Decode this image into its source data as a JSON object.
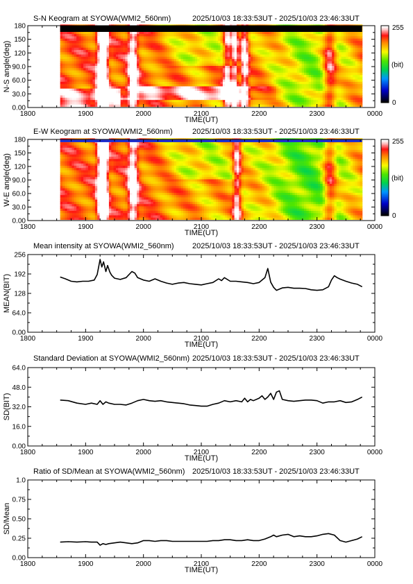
{
  "station": "SYOWA",
  "instrument": "WMI2_560nm",
  "time_range": "2025/10/03 18:33:53UT - 2025/10/03 23:46:33UT",
  "colors": {
    "axis": "#000000",
    "line": "#000000",
    "saturation_bar": "#000000",
    "colorbar": [
      "#000000",
      "#0000ff",
      "#00ff00",
      "#ffff00",
      "#ff0000",
      "#ffffff"
    ]
  },
  "colorbar_labels": {
    "max": "255",
    "unit": "(bit)",
    "min": "0"
  },
  "x_ticks": [
    "1800",
    "1900",
    "2000",
    "2100",
    "2200",
    "2300",
    "0000"
  ],
  "chart_data": [
    {
      "type": "heatmap",
      "title": "S-N Keogram at SYOWA(WMI2_560nm)",
      "subtitle": "2025/10/03 18:33:53UT - 2025/10/03 23:46:33UT",
      "xlabel": "TIME(UT)",
      "ylabel": "N-S angle(deg)",
      "yticks": [
        "0.00",
        "30.0",
        "60.0",
        "90.0",
        "120",
        "150",
        "180"
      ],
      "xlim": [
        0,
        6
      ],
      "ylim": [
        0,
        180
      ],
      "data_extent": [
        0.56,
        5.78
      ],
      "value_range": [
        0,
        255
      ],
      "bright_events": [
        {
          "t": 1.26,
          "width": 0.05,
          "type": "vertical"
        },
        {
          "t": 1.34,
          "width": 0.04,
          "type": "vertical"
        },
        {
          "t": 1.82,
          "width": 0.06,
          "type": "vertical"
        },
        {
          "t": 3.45,
          "width": 0.05,
          "type": "vertical"
        },
        {
          "t": 3.58,
          "width": 0.04,
          "type": "vertical"
        },
        {
          "t": 3.75,
          "width": 0.05,
          "type": "vertical"
        },
        {
          "t": 5.22,
          "width": 0.08,
          "type": "vertical"
        }
      ],
      "pale_band": {
        "t_start": 1.1,
        "t_end": 4.3,
        "angle_low": 15,
        "angle_high": 45
      }
    },
    {
      "type": "heatmap",
      "title": "E-W Keogram at SYOWA(WMI2_560nm)",
      "subtitle": "2025/10/03 18:33:53UT - 2025/10/03 23:46:33UT",
      "xlabel": "TIME(UT)",
      "ylabel": "W-E angle(deg)",
      "yticks": [
        "0.00",
        "30.0",
        "60.0",
        "90.0",
        "120",
        "150",
        "180"
      ],
      "xlim": [
        0,
        6
      ],
      "ylim": [
        0,
        180
      ],
      "data_extent": [
        0.56,
        5.78
      ],
      "value_range": [
        0,
        255
      ],
      "bright_events": [
        {
          "t": 1.26,
          "width": 0.05,
          "type": "vertical"
        },
        {
          "t": 1.34,
          "width": 0.04,
          "type": "vertical"
        },
        {
          "t": 1.82,
          "width": 0.06,
          "type": "vertical"
        },
        {
          "t": 3.62,
          "width": 0.05,
          "type": "vertical"
        },
        {
          "t": 5.22,
          "width": 0.08,
          "type": "vertical"
        }
      ]
    },
    {
      "type": "line",
      "title": "Mean intensity at SYOWA(WMI2_560nm)",
      "subtitle": "2025/10/03 18:33:53UT - 2025/10/03 23:46:33UT",
      "xlabel": "TIME(UT)",
      "ylabel": "MEAN(BIT)",
      "yticks": [
        "0.00",
        "64.0",
        "128",
        "192",
        "256"
      ],
      "ylim": [
        0,
        256
      ],
      "xlim": [
        0,
        6
      ],
      "series": [
        {
          "x": [
            0.56,
            0.65,
            0.75,
            0.85,
            0.95,
            1.05,
            1.15,
            1.2,
            1.25,
            1.28,
            1.31,
            1.35,
            1.38,
            1.42,
            1.45,
            1.5,
            1.55,
            1.6,
            1.7,
            1.8,
            1.85,
            1.9,
            2.0,
            2.1,
            2.2,
            2.3,
            2.4,
            2.5,
            2.6,
            2.7,
            2.8,
            2.9,
            3.0,
            3.1,
            3.2,
            3.3,
            3.35,
            3.4,
            3.5,
            3.6,
            3.7,
            3.8,
            3.9,
            4.0,
            4.1,
            4.15,
            4.2,
            4.25,
            4.3,
            4.4,
            4.5,
            4.6,
            4.7,
            4.8,
            4.9,
            5.0,
            5.1,
            5.2,
            5.25,
            5.3,
            5.35,
            5.4,
            5.5,
            5.6,
            5.7,
            5.78
          ],
          "values": [
            182,
            176,
            168,
            166,
            168,
            168,
            172,
            190,
            240,
            215,
            232,
            200,
            220,
            198,
            188,
            178,
            176,
            174,
            180,
            200,
            195,
            180,
            172,
            168,
            176,
            168,
            162,
            158,
            162,
            164,
            160,
            158,
            156,
            160,
            164,
            176,
            170,
            180,
            168,
            168,
            166,
            164,
            160,
            164,
            180,
            210,
            165,
            148,
            138,
            146,
            148,
            145,
            145,
            144,
            140,
            138,
            140,
            150,
            172,
            186,
            180,
            175,
            168,
            162,
            158,
            150
          ]
        }
      ]
    },
    {
      "type": "line",
      "title": "Standard Deviation at SYOWA(WMI2_560nm)",
      "subtitle": "2025/10/03 18:33:53UT - 2025/10/03 23:46:33UT",
      "xlabel": "TIME(UT)",
      "ylabel": "SD(BIT)",
      "yticks": [
        "0.00",
        "16.0",
        "32.0",
        "48.0",
        "64.0"
      ],
      "ylim": [
        0,
        64
      ],
      "xlim": [
        0,
        6
      ],
      "series": [
        {
          "x": [
            0.56,
            0.7,
            0.85,
            1.0,
            1.1,
            1.2,
            1.25,
            1.3,
            1.35,
            1.4,
            1.5,
            1.6,
            1.7,
            1.8,
            1.9,
            2.0,
            2.1,
            2.2,
            2.3,
            2.4,
            2.5,
            2.6,
            2.7,
            2.8,
            2.9,
            3.0,
            3.1,
            3.2,
            3.3,
            3.4,
            3.5,
            3.6,
            3.7,
            3.75,
            3.8,
            3.85,
            3.9,
            4.0,
            4.05,
            4.1,
            4.15,
            4.2,
            4.25,
            4.3,
            4.35,
            4.4,
            4.5,
            4.6,
            4.7,
            4.8,
            4.9,
            5.0,
            5.1,
            5.2,
            5.3,
            5.4,
            5.5,
            5.6,
            5.7,
            5.78
          ],
          "values": [
            37.5,
            37,
            35,
            34,
            35,
            34,
            37,
            34,
            36,
            35,
            34,
            34,
            33.5,
            35,
            37,
            38,
            37,
            36.5,
            37,
            36,
            35.5,
            35,
            34.5,
            33.5,
            33,
            32.5,
            32.5,
            34,
            35,
            37,
            36,
            37,
            36,
            39,
            36,
            38,
            37,
            39,
            41,
            38,
            40,
            43,
            38,
            44,
            45,
            38,
            37,
            36.5,
            37,
            37.5,
            37.5,
            37,
            35,
            36,
            36,
            37,
            35.5,
            36,
            38,
            40
          ]
        }
      ]
    },
    {
      "type": "line",
      "title": "Ratio of SD/Mean at SYOWA(WMI2_560nm)",
      "subtitle": "2025/10/03 18:33:53UT - 2025/10/03 23:46:33UT",
      "xlabel": "TIME(UT)",
      "ylabel": "SD/Mean",
      "yticks": [
        "0.00",
        "0.25",
        "0.50",
        "0.75",
        "1.0"
      ],
      "ylim": [
        0,
        1
      ],
      "xlim": [
        0,
        6
      ],
      "series": [
        {
          "x": [
            0.56,
            0.7,
            0.85,
            1.0,
            1.1,
            1.2,
            1.25,
            1.3,
            1.35,
            1.4,
            1.5,
            1.6,
            1.7,
            1.8,
            1.9,
            2.0,
            2.1,
            2.2,
            2.3,
            2.4,
            2.5,
            2.6,
            2.7,
            2.8,
            2.9,
            3.0,
            3.1,
            3.2,
            3.3,
            3.4,
            3.5,
            3.6,
            3.7,
            3.8,
            3.9,
            4.0,
            4.1,
            4.2,
            4.25,
            4.3,
            4.4,
            4.5,
            4.6,
            4.7,
            4.8,
            4.9,
            5.0,
            5.1,
            5.2,
            5.3,
            5.4,
            5.5,
            5.6,
            5.7,
            5.78
          ],
          "values": [
            0.2,
            0.205,
            0.2,
            0.205,
            0.2,
            0.2,
            0.16,
            0.18,
            0.17,
            0.18,
            0.19,
            0.2,
            0.19,
            0.18,
            0.19,
            0.22,
            0.22,
            0.21,
            0.22,
            0.22,
            0.21,
            0.21,
            0.21,
            0.21,
            0.21,
            0.21,
            0.21,
            0.22,
            0.22,
            0.23,
            0.23,
            0.22,
            0.22,
            0.23,
            0.22,
            0.22,
            0.24,
            0.27,
            0.29,
            0.27,
            0.29,
            0.3,
            0.27,
            0.28,
            0.27,
            0.27,
            0.28,
            0.3,
            0.31,
            0.29,
            0.22,
            0.2,
            0.22,
            0.24,
            0.27
          ]
        }
      ]
    }
  ]
}
